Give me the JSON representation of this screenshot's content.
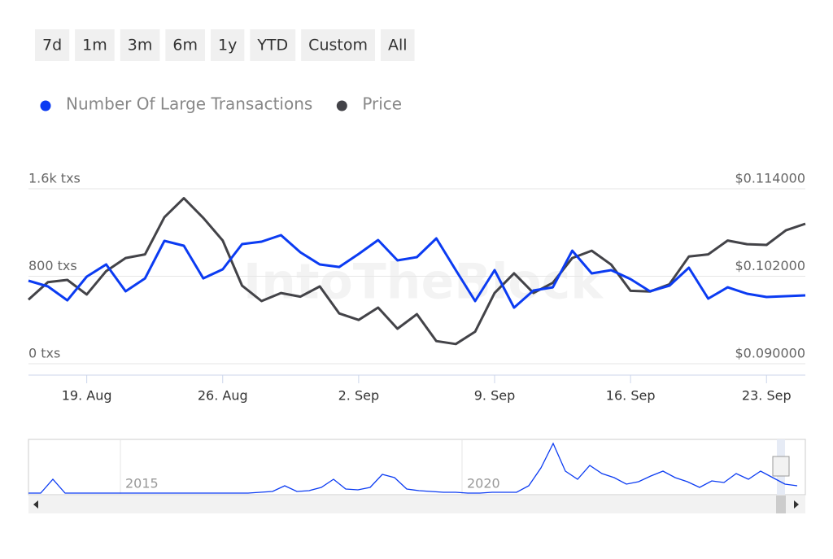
{
  "buttons": [
    "7d",
    "1m",
    "3m",
    "6m",
    "1y",
    "YTD",
    "Custom",
    "All"
  ],
  "watermark": "IntoTheBlock",
  "chart_data": {
    "type": "line",
    "categories": [
      null,
      null,
      null,
      "19. Aug",
      null,
      null,
      null,
      null,
      null,
      null,
      "26. Aug",
      null,
      null,
      null,
      null,
      null,
      null,
      "2. Sep",
      null,
      null,
      null,
      null,
      null,
      null,
      "9. Sep",
      null,
      null,
      null,
      null,
      null,
      null,
      "16. Sep",
      null,
      null,
      null,
      null,
      null,
      null,
      "23. Sep",
      null,
      null
    ],
    "series": [
      {
        "name": "Number Of Large Transactions",
        "color": "#0b3bf2",
        "values": [
          759,
          707,
          580,
          796,
          908,
          662,
          781,
          1124,
          1079,
          781,
          863,
          1094,
          1116,
          1176,
          1019,
          908,
          885,
          1004,
          1131,
          945,
          975,
          1146,
          856,
          573,
          856,
          513,
          670,
          699,
          1034,
          826,
          856,
          774,
          662,
          714,
          878,
          595,
          699,
          640,
          610,
          618,
          625
        ]
      },
      {
        "name": "Price",
        "color": "#434348",
        "axis": "y2",
        "values": [
          0.0988,
          0.1012,
          0.1015,
          0.0995,
          0.1027,
          0.1045,
          0.105,
          0.1101,
          0.1127,
          0.11,
          0.1069,
          0.1007,
          0.0986,
          0.0997,
          0.0992,
          0.1006,
          0.0969,
          0.096,
          0.0977,
          0.0948,
          0.0968,
          0.0931,
          0.0927,
          0.0944,
          0.0997,
          0.1024,
          0.0997,
          0.1011,
          0.1045,
          0.1055,
          0.1036,
          0.1,
          0.0999,
          0.1009,
          0.1047,
          0.105,
          0.1069,
          0.1064,
          0.1063,
          0.1083,
          0.1092
        ]
      }
    ],
    "ylim": [
      0,
      1600
    ],
    "yticks": [
      {
        "value": 0,
        "label": "0 txs"
      },
      {
        "value": 800,
        "label": "800 txs"
      },
      {
        "value": 1600,
        "label": "1.6k txs"
      }
    ],
    "y2lim": [
      0.09,
      0.114
    ],
    "y2ticks": [
      {
        "value": 0.09,
        "label": "$0.090000"
      },
      {
        "value": 0.102,
        "label": "$0.102000"
      },
      {
        "value": 0.114,
        "label": "$0.114000"
      }
    ],
    "grid": true,
    "legend": "top-left",
    "navigator": {
      "labels": [
        "2015",
        "2020"
      ],
      "color": "#0b3bf2",
      "values": [
        85,
        85,
        1530,
        85,
        85,
        85,
        85,
        85,
        85,
        85,
        85,
        85,
        85,
        85,
        85,
        85,
        85,
        85,
        85,
        170,
        255,
        850,
        255,
        340,
        680,
        1530,
        510,
        425,
        680,
        2040,
        1700,
        510,
        340,
        255,
        170,
        170,
        85,
        85,
        170,
        170,
        170,
        850,
        2720,
        5270,
        2380,
        1530,
        2975,
        2125,
        1700,
        1020,
        1275,
        1870,
        2380,
        1700,
        1275,
        680,
        1360,
        1190,
        2125,
        1530,
        2380,
        1700,
        1020,
        850
      ]
    }
  }
}
